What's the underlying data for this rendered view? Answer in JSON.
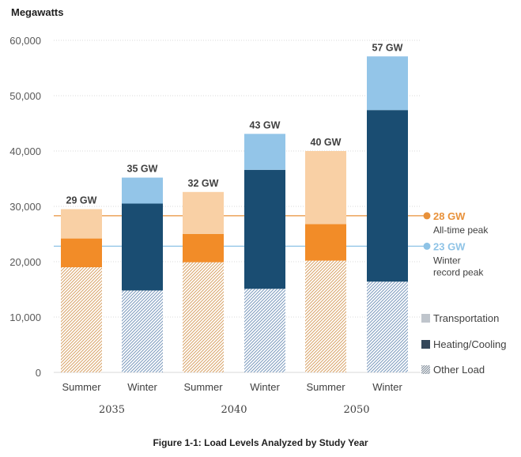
{
  "chart_data": {
    "type": "bar",
    "stacked": true,
    "ylabel": "Megawatts",
    "ylim": [
      0,
      60000
    ],
    "yticks": [
      0,
      10000,
      20000,
      30000,
      40000,
      50000,
      60000
    ],
    "ytick_labels": [
      "0",
      "10,000",
      "20,000",
      "30,000",
      "40,000",
      "50,000",
      "60,000"
    ],
    "grid": true,
    "categories": [
      "Summer",
      "Winter",
      "Summer",
      "Winter",
      "Summer",
      "Winter"
    ],
    "groups": [
      {
        "label": "2035",
        "span": [
          0,
          1
        ]
      },
      {
        "label": "2040",
        "span": [
          2,
          3
        ]
      },
      {
        "label": "2050",
        "span": [
          4,
          5
        ]
      }
    ],
    "series": [
      {
        "name": "Other Load",
        "values": [
          19000,
          14800,
          19900,
          15100,
          20200,
          16400
        ]
      },
      {
        "name": "Heating/Cooling",
        "values": [
          5200,
          15700,
          5100,
          21500,
          6600,
          31000
        ]
      },
      {
        "name": "Transportation",
        "values": [
          5300,
          4700,
          7600,
          6500,
          13200,
          9700
        ]
      }
    ],
    "season_colors": {
      "Summer": {
        "Other Load": "#d9a66c",
        "Heating/Cooling": "#f28c28",
        "Transportation": "#f9d0a5"
      },
      "Winter": {
        "Other Load": "#c3d4e8",
        "Heating/Cooling": "#1a4d72",
        "Transportation": "#93c5e8"
      }
    },
    "total_labels": [
      "29 GW",
      "35 GW",
      "32 GW",
      "43 GW",
      "40 GW",
      "57 GW"
    ],
    "reference_lines": [
      {
        "value": 28300,
        "label": "28 GW",
        "sublabel_1": "All-time peak",
        "sublabel_2": "",
        "color": "#e8913a"
      },
      {
        "value": 22800,
        "label": "23 GW",
        "sublabel_1": "Winter",
        "sublabel_2": "record peak",
        "color": "#8ec3e6"
      }
    ],
    "legend": {
      "placement": "right",
      "items": [
        {
          "label": "Transportation",
          "color": "#bfc5cc",
          "pattern": "solid"
        },
        {
          "label": "Heating/Cooling",
          "color": "#34475a",
          "pattern": "solid"
        },
        {
          "label": "Other Load",
          "color": "#7a8794",
          "pattern": "hatch"
        }
      ]
    }
  },
  "caption": "Figure 1-1: Load Levels Analyzed by Study Year"
}
